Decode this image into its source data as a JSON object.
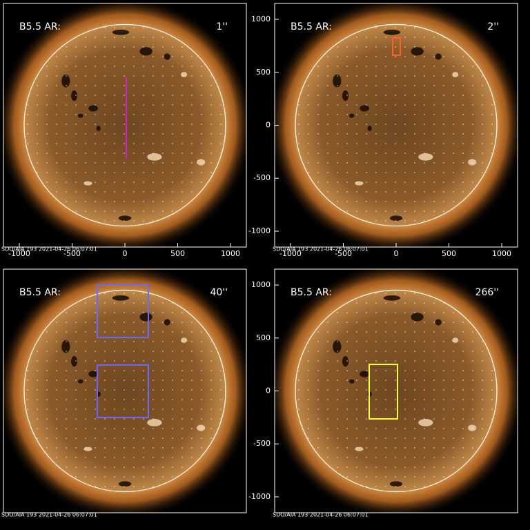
{
  "chart_data": [
    {
      "type": "image",
      "label": "B5.5 AR:",
      "size_label": "1''",
      "size_color": "#d020d0",
      "footer": "SDO/AIA 193  2021-04-26 06:07:01",
      "xlim": [
        -1150,
        1150
      ],
      "ylim": [
        -1150,
        1150
      ],
      "xticks": [
        -1000,
        -500,
        0,
        500,
        1000
      ]
    },
    {
      "type": "image",
      "label": "B5.5 AR:",
      "size_label": "2''",
      "size_color": "#ff6020",
      "footer": "SDO/AIA 193  2021-04-26 06:07:01",
      "xlim": [
        -1150,
        1150
      ],
      "ylim": [
        -1150,
        1150
      ],
      "xticks": [
        -1000,
        -500,
        0,
        500,
        1000
      ],
      "yticks": [
        -1000,
        -500,
        0,
        500,
        1000
      ]
    },
    {
      "type": "image",
      "label": "B5.5 AR:",
      "size_label": "40''",
      "size_color": "#6a6aff",
      "footer": "SDO/AIA 193  2021-04-26 06:07:01",
      "xlim": [
        -1150,
        1150
      ],
      "ylim": [
        -1150,
        1150
      ]
    },
    {
      "type": "image",
      "label": "B5.5 AR:",
      "size_label": "266''",
      "size_color": "#ffff40",
      "footer": "SDO/AIA 193  2021-04-26 06:07:01",
      "xlim": [
        -1150,
        1150
      ],
      "ylim": [
        -1150,
        1150
      ],
      "yticks": [
        -1000,
        -500,
        0,
        500,
        1000
      ]
    }
  ]
}
